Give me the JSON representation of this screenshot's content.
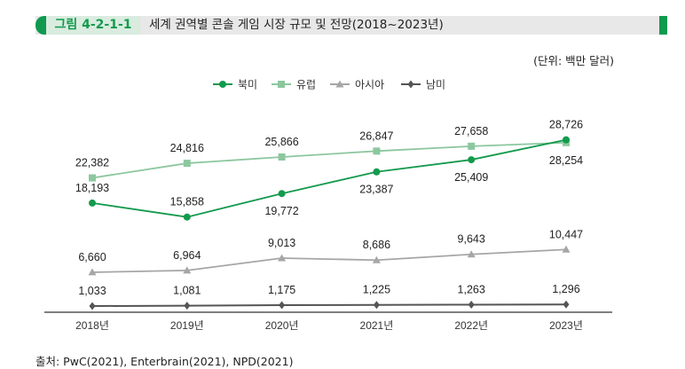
{
  "figure": {
    "number": "그림 4-2-1-1",
    "title": "세계 권역별 콘솔 게임 시장 규모 및 전망(2018~2023년)",
    "unit": "(단위: 백만 달러)",
    "source": "출처: PwC(2021), Enterbrain(2021), NPD(2021)"
  },
  "colors": {
    "accent": "#0f9a50",
    "north_america": "#139a4d",
    "europe": "#8cc79f",
    "asia": "#a6a6a6",
    "south_america": "#555555"
  },
  "chart_data": {
    "type": "line",
    "categories": [
      "2018년",
      "2019년",
      "2020년",
      "2021년",
      "2022년",
      "2023년"
    ],
    "ylim": [
      0,
      30000
    ],
    "grid": false,
    "legend": "top-center",
    "series": [
      {
        "name": "북미",
        "marker": "circle",
        "values": [
          18193,
          15858,
          19772,
          23387,
          25409,
          28726
        ],
        "labels": [
          "18,193",
          "15,858",
          "19,772",
          "23,387",
          "25,409",
          "28,726"
        ]
      },
      {
        "name": "유럽",
        "marker": "square",
        "values": [
          22382,
          24816,
          25866,
          26847,
          27658,
          28254
        ],
        "labels": [
          "22,382",
          "24,816",
          "25,866",
          "26,847",
          "27,658",
          "28,254"
        ]
      },
      {
        "name": "아시아",
        "marker": "triangle",
        "values": [
          6660,
          6964,
          9013,
          8686,
          9643,
          10447
        ],
        "labels": [
          "6,660",
          "6,964",
          "9,013",
          "8,686",
          "9,643",
          "10,447"
        ]
      },
      {
        "name": "남미",
        "marker": "diamond",
        "values": [
          1033,
          1081,
          1175,
          1225,
          1263,
          1296
        ],
        "labels": [
          "1,033",
          "1,081",
          "1,175",
          "1,225",
          "1,263",
          "1,296"
        ]
      }
    ]
  }
}
